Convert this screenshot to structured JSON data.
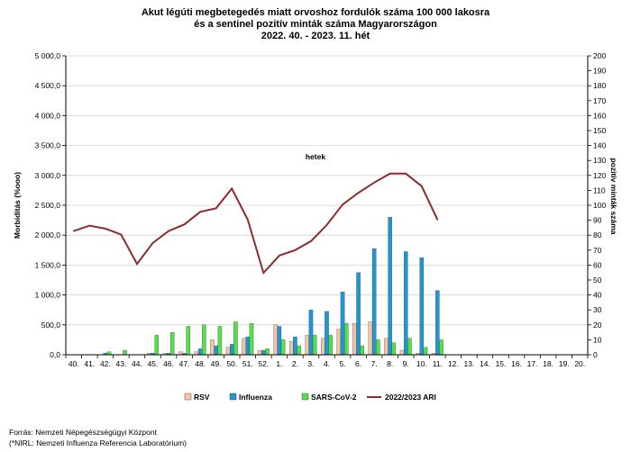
{
  "chart_data": {
    "type": "bar",
    "title_lines": [
      "Akut légúti megbetegedés miatt orvoshoz fordulók száma 100 000 lakosra",
      "és a sentinel pozitív minták száma Magyarországon",
      "2022. 40. - 2023. 11. hét"
    ],
    "xlabel": "hetek",
    "ylabel_left": "Morbiditás (%ooo)",
    "ylabel_right": "pozitív minták száma",
    "categories": [
      "40.",
      "41.",
      "42.",
      "43.",
      "44.",
      "45.",
      "46.",
      "47.",
      "48.",
      "49.",
      "50.",
      "51.",
      "52.",
      "1.",
      "2.",
      "3.",
      "4.",
      "5.",
      "6.",
      "7.",
      "8.",
      "9.",
      "10.",
      "11.",
      "12.",
      "13.",
      "14.",
      "15.",
      "16.",
      "17.",
      "18.",
      "19.",
      "20."
    ],
    "ylim_left": [
      0,
      5000
    ],
    "ylim_right": [
      0,
      200
    ],
    "left_ticks": [
      "0,0",
      "500,0",
      "1 000,0",
      "1 500,0",
      "2 000,0",
      "2 500,0",
      "3 000,0",
      "3 500,0",
      "4 000,0",
      "4 500,0",
      "5 000,0"
    ],
    "right_ticks": [
      "0",
      "10",
      "20",
      "30",
      "40",
      "50",
      "60",
      "70",
      "80",
      "90",
      "100",
      "110",
      "120",
      "130",
      "140",
      "150",
      "160",
      "170",
      "180",
      "190",
      "200"
    ],
    "grid": "horizontal",
    "legend_position": "bottom",
    "series": [
      {
        "name": "RSV",
        "axis": "right",
        "kind": "bar",
        "color": "#f4c4a4",
        "values": [
          0,
          0,
          0,
          0,
          0,
          1,
          1,
          2,
          2,
          10,
          5,
          11,
          3,
          20,
          9,
          13,
          11,
          17,
          21,
          22,
          11,
          3,
          1,
          1,
          null,
          null,
          null,
          null,
          null,
          null,
          null,
          null,
          null
        ]
      },
      {
        "name": "Influenza",
        "axis": "right",
        "kind": "bar",
        "color": "#1f97d4",
        "values": [
          0,
          0,
          1,
          0,
          0,
          1,
          1,
          1,
          4,
          6,
          7,
          12,
          3,
          19,
          12,
          30,
          29,
          42,
          55,
          71,
          92,
          69,
          65,
          43,
          null,
          null,
          null,
          null,
          null,
          null,
          null,
          null,
          null
        ]
      },
      {
        "name": "SARS-CoV-2",
        "axis": "right",
        "kind": "bar",
        "color": "#55e04a",
        "values": [
          0,
          0,
          2,
          3,
          0,
          13,
          15,
          19,
          20,
          19,
          22,
          21,
          4,
          10,
          6,
          13,
          13,
          21,
          6,
          10,
          8,
          11,
          5,
          10,
          null,
          null,
          null,
          null,
          null,
          null,
          null,
          null,
          null
        ]
      },
      {
        "name": "2022/2023 ARI",
        "axis": "left",
        "kind": "line",
        "color": "#8c2c2c",
        "values": [
          2070,
          2160,
          2110,
          2010,
          1520,
          1870,
          2070,
          2180,
          2390,
          2450,
          2780,
          2260,
          1370,
          1660,
          1750,
          1900,
          2170,
          2510,
          2710,
          2880,
          3030,
          3030,
          2820,
          2260,
          null,
          null,
          null,
          null,
          null,
          null,
          null,
          null,
          null
        ]
      }
    ]
  },
  "source_lines": [
    "Forrás: Nemzeti Népegészségügyi Központ",
    "(*NIRL: Nemzeti Influenza Referencia Laboratórium)"
  ]
}
